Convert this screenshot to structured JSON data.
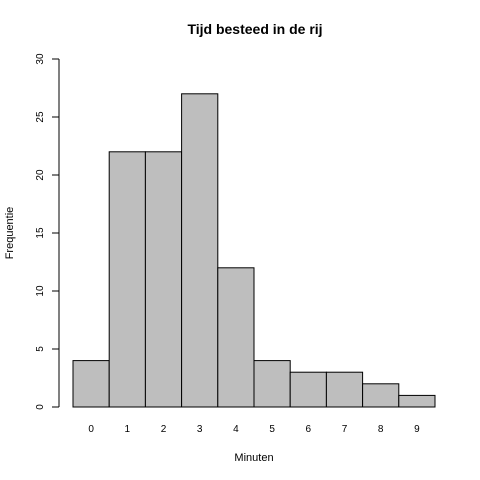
{
  "chart_data": {
    "type": "bar",
    "title": "Tijd besteed in de rij",
    "xlabel": "Minuten",
    "ylabel": "Frequentie",
    "categories": [
      "0",
      "1",
      "2",
      "3",
      "4",
      "5",
      "6",
      "7",
      "8",
      "9"
    ],
    "values": [
      4,
      22,
      22,
      27,
      12,
      4,
      3,
      3,
      2,
      1
    ],
    "ylim": [
      0,
      30
    ],
    "yticks": [
      0,
      5,
      10,
      15,
      20,
      25,
      30
    ],
    "bar_color": "#bebebe",
    "grid": false,
    "legend": "none"
  }
}
